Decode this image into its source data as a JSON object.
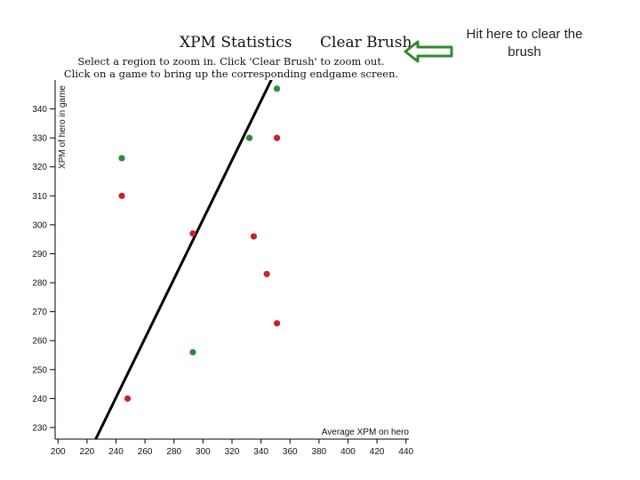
{
  "header": {
    "title": "XPM Statistics",
    "clear_brush_label": "Clear Brush",
    "subtitle_line1": "Select a region to zoom in. Click 'Clear Brush' to zoom out.",
    "subtitle_line2": "Click on a game to bring up the corresponding endgame screen."
  },
  "callout": {
    "text_line1": "Hit here to clear the",
    "text_line2": "brush",
    "arrow_color": "#2e8b2e"
  },
  "chart_data": {
    "type": "scatter",
    "title": "XPM Statistics",
    "xlabel": "Average XPM on hero",
    "ylabel": "XPM of hero in game",
    "xlim": [
      198,
      442
    ],
    "ylim": [
      226,
      350
    ],
    "x_ticks": [
      "200",
      "220",
      "240",
      "260",
      "280",
      "300",
      "320",
      "340",
      "360",
      "380",
      "400",
      "420",
      "440"
    ],
    "y_ticks": [
      "230",
      "240",
      "250",
      "260",
      "270",
      "280",
      "290",
      "300",
      "310",
      "320",
      "330",
      "340"
    ],
    "grid": false,
    "colors": {
      "win": "#2e8b3a",
      "loss": "#cc1f2f",
      "line": "#000000"
    },
    "points": [
      {
        "x": 351,
        "y": 347,
        "result": "win"
      },
      {
        "x": 332,
        "y": 330,
        "result": "win"
      },
      {
        "x": 351,
        "y": 330,
        "result": "loss"
      },
      {
        "x": 244,
        "y": 323,
        "result": "win"
      },
      {
        "x": 244,
        "y": 310,
        "result": "loss"
      },
      {
        "x": 293,
        "y": 297,
        "result": "loss"
      },
      {
        "x": 335,
        "y": 296,
        "result": "loss"
      },
      {
        "x": 344,
        "y": 283,
        "result": "loss"
      },
      {
        "x": 351,
        "y": 266,
        "result": "loss"
      },
      {
        "x": 293,
        "y": 256,
        "result": "win"
      },
      {
        "x": 248,
        "y": 240,
        "result": "loss"
      }
    ],
    "reference_line": {
      "x1": 226,
      "y1": 226,
      "x2": 349,
      "y2": 352
    }
  }
}
